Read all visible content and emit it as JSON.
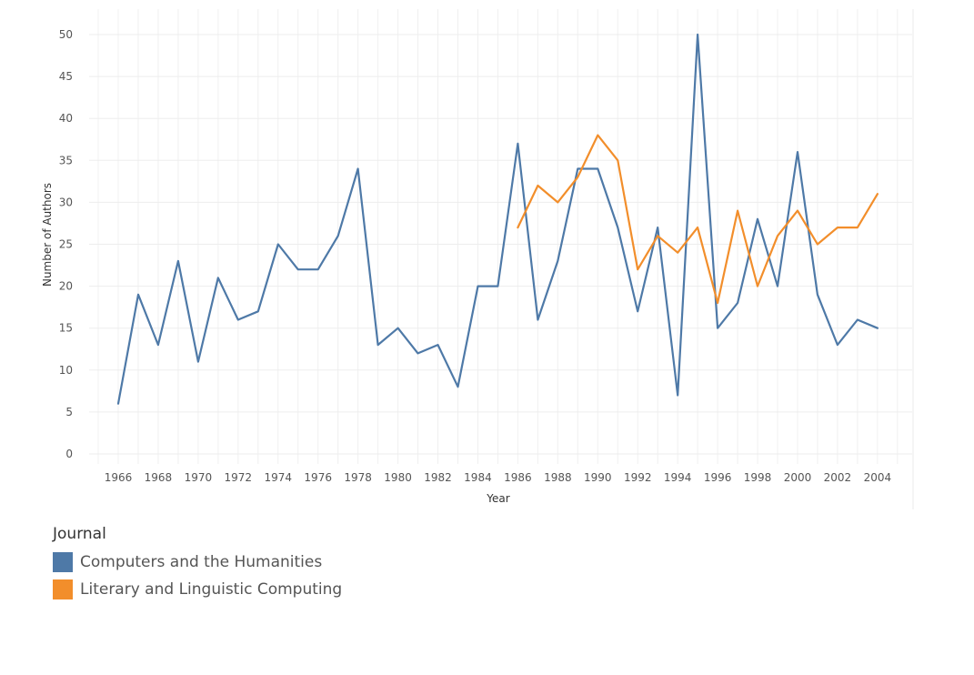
{
  "chart_data": {
    "type": "line",
    "xlabel": "Year",
    "ylabel": "Number of Authors",
    "xlim": [
      1965,
      2005
    ],
    "ylim": [
      0,
      50
    ],
    "x_ticks": [
      1966,
      1968,
      1970,
      1972,
      1974,
      1976,
      1978,
      1980,
      1982,
      1984,
      1986,
      1988,
      1990,
      1992,
      1994,
      1996,
      1998,
      2000,
      2002,
      2004
    ],
    "y_ticks": [
      0,
      5,
      10,
      15,
      20,
      25,
      30,
      35,
      40,
      45,
      50
    ],
    "grid": true,
    "legend": {
      "title": "Journal",
      "placement": "bottom-left"
    },
    "series": [
      {
        "name": "Computers and the Humanities",
        "color": "#4e79a7",
        "x": [
          1966,
          1967,
          1968,
          1969,
          1970,
          1971,
          1972,
          1973,
          1974,
          1975,
          1976,
          1977,
          1978,
          1979,
          1980,
          1981,
          1982,
          1983,
          1984,
          1985,
          1986,
          1987,
          1988,
          1989,
          1990,
          1991,
          1992,
          1993,
          1994,
          1995,
          1996,
          1997,
          1998,
          1999,
          2000,
          2001,
          2002,
          2003,
          2004
        ],
        "values": [
          6,
          19,
          13,
          23,
          11,
          21,
          16,
          17,
          25,
          22,
          22,
          26,
          34,
          13,
          15,
          12,
          13,
          8,
          20,
          20,
          37,
          16,
          23,
          34,
          34,
          27,
          17,
          27,
          7,
          50,
          15,
          18,
          28,
          20,
          36,
          19,
          13,
          16,
          15
        ]
      },
      {
        "name": "Literary and Linguistic Computing",
        "color": "#f28e2b",
        "x": [
          1986,
          1987,
          1988,
          1989,
          1990,
          1991,
          1992,
          1993,
          1994,
          1995,
          1996,
          1997,
          1998,
          1999,
          2000,
          2001,
          2002,
          2003,
          2004
        ],
        "values": [
          27,
          32,
          30,
          33,
          38,
          35,
          22,
          26,
          24,
          27,
          18,
          29,
          20,
          26,
          29,
          25,
          27,
          27,
          31
        ]
      }
    ]
  }
}
